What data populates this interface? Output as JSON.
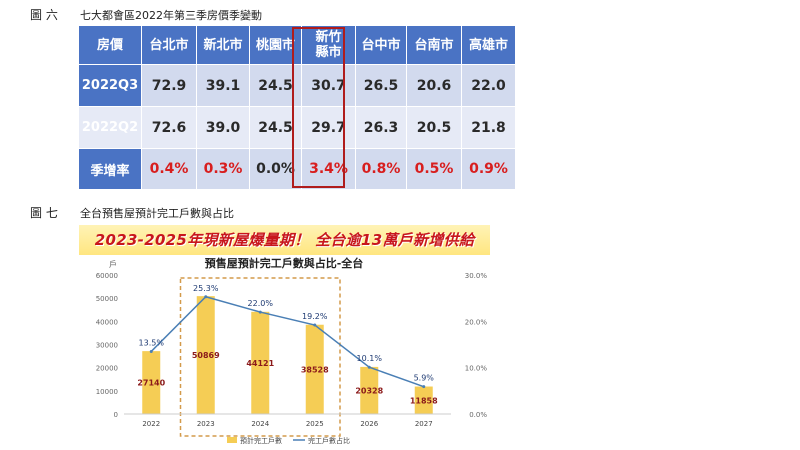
{
  "fig6": {
    "label": "圖 六",
    "title": "七大都會區2022年第三季房價季變動",
    "header": [
      "房價",
      "台北市",
      "新北市",
      "桃園市",
      "新竹縣市",
      "台中市",
      "台南市",
      "高雄市"
    ],
    "rows": [
      {
        "label": "2022Q3",
        "values": [
          "72.9",
          "39.1",
          "24.5",
          "30.7",
          "26.5",
          "20.6",
          "22.0"
        ]
      },
      {
        "label": "2022Q2",
        "values": [
          "72.6",
          "39.0",
          "24.5",
          "29.7",
          "26.3",
          "20.5",
          "21.8"
        ]
      },
      {
        "label": "季增率",
        "values": [
          "0.4%",
          "0.3%",
          "0.0%",
          "3.4%",
          "0.8%",
          "0.5%",
          "0.9%"
        ]
      }
    ],
    "highlight_city": "新竹縣市",
    "colors": {
      "header": "#4a73c4",
      "highlight_border": "#b01c1c",
      "growth_text": "#d81e1e"
    }
  },
  "fig7": {
    "label": "圖 七",
    "title": "全台預售屋預計完工戶數與占比",
    "banner": "2023-2025年現新屋爆量期！ 全台逾13萬戶新增供給"
  },
  "chart_data": {
    "type": "bar",
    "title": "預售屋預計完工戶數與占比-全台",
    "categories": [
      "2022",
      "2023",
      "2024",
      "2025",
      "2026",
      "2027"
    ],
    "left_axis_unit": "戶",
    "ylim": [
      0,
      60000
    ],
    "y_ticks": [
      "0",
      "10000",
      "20000",
      "30000",
      "40000",
      "50000",
      "60000"
    ],
    "y2lim": [
      0,
      30
    ],
    "y2_ticks": [
      "0.0%",
      "10.0%",
      "20.0%",
      "30.0%"
    ],
    "series": [
      {
        "name": "預計完工戶數",
        "type": "bar",
        "values": [
          27140,
          50869,
          44121,
          38528,
          20328,
          11858
        ],
        "labels": [
          "27140",
          "50869",
          "44121",
          "38528",
          "20328",
          "11858"
        ],
        "color": "#f5cd55"
      },
      {
        "name": "完工戶數占比",
        "type": "line",
        "axis": "right",
        "values": [
          13.5,
          25.3,
          22.0,
          19.2,
          10.1,
          5.9
        ],
        "labels": [
          "13.5%",
          "25.3%",
          "22.0%",
          "19.2%",
          "10.1%",
          "5.9%"
        ],
        "color": "#4a7fb5"
      }
    ],
    "highlight_range": [
      "2023",
      "2025"
    ],
    "legend": "bottom",
    "grid": false
  }
}
